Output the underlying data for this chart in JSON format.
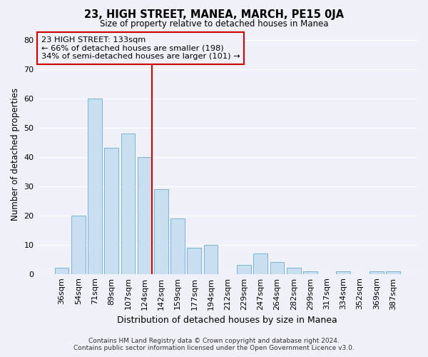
{
  "title": "23, HIGH STREET, MANEA, MARCH, PE15 0JA",
  "subtitle": "Size of property relative to detached houses in Manea",
  "xlabel": "Distribution of detached houses by size in Manea",
  "ylabel": "Number of detached properties",
  "bar_color": "#c8dff0",
  "bar_edge_color": "#7ab3d4",
  "categories": [
    "36sqm",
    "54sqm",
    "71sqm",
    "89sqm",
    "107sqm",
    "124sqm",
    "142sqm",
    "159sqm",
    "177sqm",
    "194sqm",
    "212sqm",
    "229sqm",
    "247sqm",
    "264sqm",
    "282sqm",
    "299sqm",
    "317sqm",
    "334sqm",
    "352sqm",
    "369sqm",
    "387sqm"
  ],
  "values": [
    2,
    20,
    60,
    43,
    48,
    40,
    29,
    19,
    9,
    10,
    0,
    3,
    7,
    4,
    2,
    1,
    0,
    1,
    0,
    1,
    1
  ],
  "ylim": [
    0,
    82
  ],
  "yticks": [
    0,
    10,
    20,
    30,
    40,
    50,
    60,
    70,
    80
  ],
  "vline_index": 5,
  "vline_color": "#cc0000",
  "box_edge_color": "#cc0000",
  "marker_label": "23 HIGH STREET: 133sqm",
  "annotation_line1": "← 66% of detached houses are smaller (198)",
  "annotation_line2": "34% of semi-detached houses are larger (101) →",
  "footnote1": "Contains HM Land Registry data © Crown copyright and database right 2024.",
  "footnote2": "Contains public sector information licensed under the Open Government Licence v3.0.",
  "background_color": "#f0f0f8",
  "grid_color": "#ffffff"
}
